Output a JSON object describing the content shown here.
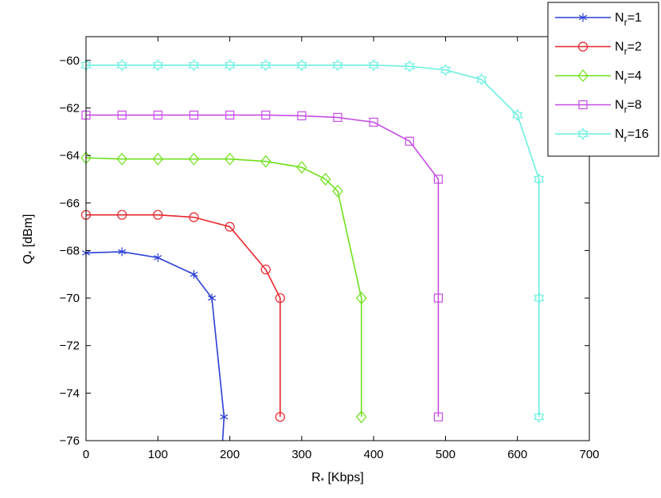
{
  "chart_data": {
    "type": "line",
    "xlabel": "R",
    "xlabel_sub": "*",
    "xlabel_unit": " [Kbps]",
    "ylabel": "Q",
    "ylabel_sub": "*",
    "ylabel_unit": " [dBm]",
    "xlim": [
      0,
      700
    ],
    "ylim": [
      -76,
      -59
    ],
    "xticks": [
      0,
      100,
      200,
      300,
      400,
      500,
      600,
      700
    ],
    "yticks": [
      -76,
      -74,
      -72,
      -70,
      -68,
      -66,
      -64,
      -62,
      -60
    ],
    "grid": false,
    "legend_position": "top-right (outside)",
    "series": [
      {
        "name": "N_r=1",
        "legend_base": "N",
        "legend_sub": "r",
        "legend_tail": "=1",
        "color": "#2b3fd6",
        "marker": "asterisk",
        "x": [
          0,
          50,
          100,
          150,
          175,
          192,
          190
        ],
        "y": [
          -68.1,
          -68.05,
          -68.3,
          -69.0,
          -70.0,
          -75.0,
          -76.0
        ],
        "line_end_x": 190
      },
      {
        "name": "N_r=2",
        "legend_base": "N",
        "legend_sub": "r",
        "legend_tail": "=2",
        "color": "#e8242a",
        "marker": "circle",
        "x": [
          0,
          50,
          100,
          150,
          200,
          250,
          270,
          270
        ],
        "y": [
          -66.5,
          -66.5,
          -66.5,
          -66.6,
          -67.0,
          -68.8,
          -70.0,
          -75.0
        ]
      },
      {
        "name": "N_r=4",
        "legend_base": "N",
        "legend_sub": "r",
        "legend_tail": "=4",
        "color": "#6fe01a",
        "marker": "diamond",
        "x": [
          0,
          50,
          100,
          150,
          200,
          250,
          300,
          333,
          350,
          383,
          383
        ],
        "y": [
          -64.1,
          -64.15,
          -64.15,
          -64.15,
          -64.15,
          -64.25,
          -64.5,
          -65.0,
          -65.5,
          -70.0,
          -75.0
        ]
      },
      {
        "name": "N_r=8",
        "legend_base": "N",
        "legend_sub": "r",
        "legend_tail": "=8",
        "color": "#c54ee4",
        "marker": "square",
        "x": [
          0,
          50,
          100,
          150,
          200,
          250,
          300,
          350,
          400,
          450,
          490,
          490,
          490
        ],
        "y": [
          -62.3,
          -62.3,
          -62.3,
          -62.3,
          -62.3,
          -62.3,
          -62.33,
          -62.4,
          -62.6,
          -63.4,
          -65.0,
          -70.0,
          -75.0
        ]
      },
      {
        "name": "N_r=16",
        "legend_base": "N",
        "legend_sub": "r",
        "legend_tail": "=16",
        "color": "#6cf0e0",
        "marker": "hexagram",
        "x": [
          0,
          50,
          100,
          150,
          200,
          250,
          300,
          350,
          400,
          450,
          500,
          550,
          600,
          630,
          630,
          630
        ],
        "y": [
          -60.2,
          -60.2,
          -60.2,
          -60.2,
          -60.2,
          -60.2,
          -60.2,
          -60.2,
          -60.2,
          -60.25,
          -60.4,
          -60.8,
          -62.3,
          -65.0,
          -70.0,
          -75.0
        ]
      }
    ]
  }
}
